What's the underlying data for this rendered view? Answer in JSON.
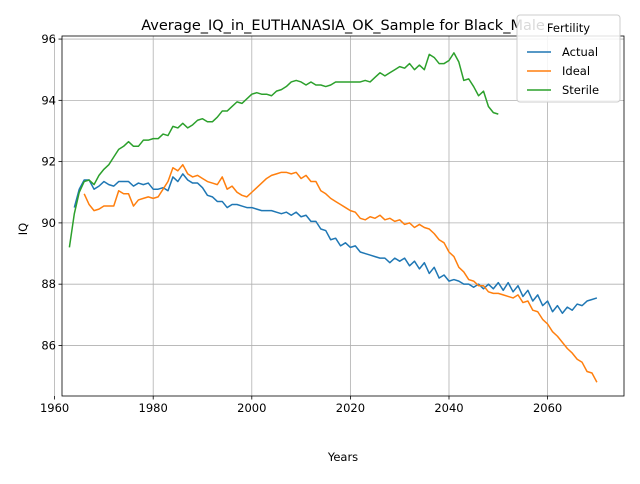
{
  "chart_data": {
    "type": "line",
    "title": "Average_IQ_in_EUTHANASIA_OK_Sample for Black_Male",
    "xlabel": "Years",
    "ylabel": "IQ",
    "xlim": [
      1961.5,
      2075.5
    ],
    "ylim": [
      84.35,
      96.1
    ],
    "xticks": [
      1960,
      1980,
      2000,
      2020,
      2040,
      2060
    ],
    "yticks": [
      86,
      88,
      90,
      92,
      94,
      96
    ],
    "grid": true,
    "legend": {
      "title": "Fertility",
      "placement": "top-right"
    },
    "series": [
      {
        "name": "Actual",
        "color": "#1f77b4",
        "points": [
          [
            1964,
            90.5
          ],
          [
            1965,
            91.1
          ],
          [
            1966,
            91.4
          ],
          [
            1967,
            91.4
          ],
          [
            1968,
            91.1
          ],
          [
            1969,
            91.2
          ],
          [
            1970,
            91.35
          ],
          [
            1971,
            91.25
          ],
          [
            1972,
            91.2
          ],
          [
            1973,
            91.35
          ],
          [
            1974,
            91.35
          ],
          [
            1975,
            91.35
          ],
          [
            1976,
            91.2
          ],
          [
            1977,
            91.3
          ],
          [
            1978,
            91.25
          ],
          [
            1979,
            91.3
          ],
          [
            1980,
            91.1
          ],
          [
            1981,
            91.1
          ],
          [
            1982,
            91.15
          ],
          [
            1983,
            91.05
          ],
          [
            1984,
            91.5
          ],
          [
            1985,
            91.35
          ],
          [
            1986,
            91.6
          ],
          [
            1987,
            91.4
          ],
          [
            1988,
            91.3
          ],
          [
            1989,
            91.3
          ],
          [
            1990,
            91.15
          ],
          [
            1991,
            90.9
          ],
          [
            1992,
            90.85
          ],
          [
            1993,
            90.7
          ],
          [
            1994,
            90.7
          ],
          [
            1995,
            90.5
          ],
          [
            1996,
            90.6
          ],
          [
            1997,
            90.6
          ],
          [
            1998,
            90.55
          ],
          [
            1999,
            90.5
          ],
          [
            2000,
            90.5
          ],
          [
            2001,
            90.45
          ],
          [
            2002,
            90.4
          ],
          [
            2003,
            90.4
          ],
          [
            2004,
            90.4
          ],
          [
            2005,
            90.35
          ],
          [
            2006,
            90.3
          ],
          [
            2007,
            90.35
          ],
          [
            2008,
            90.25
          ],
          [
            2009,
            90.35
          ],
          [
            2010,
            90.2
          ],
          [
            2011,
            90.25
          ],
          [
            2012,
            90.05
          ],
          [
            2013,
            90.05
          ],
          [
            2014,
            89.8
          ],
          [
            2015,
            89.75
          ],
          [
            2016,
            89.45
          ],
          [
            2017,
            89.5
          ],
          [
            2018,
            89.25
          ],
          [
            2019,
            89.35
          ],
          [
            2020,
            89.2
          ],
          [
            2021,
            89.25
          ],
          [
            2022,
            89.05
          ],
          [
            2023,
            89.0
          ],
          [
            2024,
            88.95
          ],
          [
            2025,
            88.9
          ],
          [
            2026,
            88.85
          ],
          [
            2027,
            88.85
          ],
          [
            2028,
            88.7
          ],
          [
            2029,
            88.85
          ],
          [
            2030,
            88.75
          ],
          [
            2031,
            88.85
          ],
          [
            2032,
            88.6
          ],
          [
            2033,
            88.75
          ],
          [
            2034,
            88.5
          ],
          [
            2035,
            88.7
          ],
          [
            2036,
            88.35
          ],
          [
            2037,
            88.55
          ],
          [
            2038,
            88.2
          ],
          [
            2039,
            88.3
          ],
          [
            2040,
            88.1
          ],
          [
            2041,
            88.15
          ],
          [
            2042,
            88.1
          ],
          [
            2043,
            88.0
          ],
          [
            2044,
            88.0
          ],
          [
            2045,
            87.9
          ],
          [
            2046,
            88.0
          ],
          [
            2047,
            87.85
          ],
          [
            2048,
            88.0
          ],
          [
            2049,
            87.85
          ],
          [
            2050,
            88.05
          ],
          [
            2051,
            87.8
          ],
          [
            2052,
            88.05
          ],
          [
            2053,
            87.75
          ],
          [
            2054,
            87.95
          ],
          [
            2055,
            87.6
          ],
          [
            2056,
            87.8
          ],
          [
            2057,
            87.45
          ],
          [
            2058,
            87.65
          ],
          [
            2059,
            87.3
          ],
          [
            2060,
            87.45
          ],
          [
            2061,
            87.1
          ],
          [
            2062,
            87.3
          ],
          [
            2063,
            87.05
          ],
          [
            2064,
            87.25
          ],
          [
            2065,
            87.15
          ],
          [
            2066,
            87.35
          ],
          [
            2067,
            87.3
          ],
          [
            2068,
            87.45
          ],
          [
            2069,
            87.5
          ],
          [
            2070,
            87.55
          ]
        ]
      },
      {
        "name": "Ideal",
        "color": "#ff7f0e",
        "points": [
          [
            1966,
            90.95
          ],
          [
            1967,
            90.6
          ],
          [
            1968,
            90.4
          ],
          [
            1969,
            90.45
          ],
          [
            1970,
            90.55
          ],
          [
            1971,
            90.55
          ],
          [
            1972,
            90.55
          ],
          [
            1973,
            91.05
          ],
          [
            1974,
            90.95
          ],
          [
            1975,
            90.95
          ],
          [
            1976,
            90.55
          ],
          [
            1977,
            90.75
          ],
          [
            1978,
            90.8
          ],
          [
            1979,
            90.85
          ],
          [
            1980,
            90.8
          ],
          [
            1981,
            90.85
          ],
          [
            1982,
            91.1
          ],
          [
            1983,
            91.35
          ],
          [
            1984,
            91.8
          ],
          [
            1985,
            91.7
          ],
          [
            1986,
            91.9
          ],
          [
            1987,
            91.6
          ],
          [
            1988,
            91.5
          ],
          [
            1989,
            91.55
          ],
          [
            1990,
            91.45
          ],
          [
            1991,
            91.35
          ],
          [
            1992,
            91.3
          ],
          [
            1993,
            91.25
          ],
          [
            1994,
            91.5
          ],
          [
            1995,
            91.1
          ],
          [
            1996,
            91.2
          ],
          [
            1997,
            91.0
          ],
          [
            1998,
            90.9
          ],
          [
            1999,
            90.85
          ],
          [
            2000,
            91.0
          ],
          [
            2001,
            91.15
          ],
          [
            2002,
            91.3
          ],
          [
            2003,
            91.45
          ],
          [
            2004,
            91.55
          ],
          [
            2005,
            91.6
          ],
          [
            2006,
            91.65
          ],
          [
            2007,
            91.65
          ],
          [
            2008,
            91.6
          ],
          [
            2009,
            91.65
          ],
          [
            2010,
            91.45
          ],
          [
            2011,
            91.55
          ],
          [
            2012,
            91.35
          ],
          [
            2013,
            91.35
          ],
          [
            2014,
            91.05
          ],
          [
            2015,
            90.95
          ],
          [
            2016,
            90.8
          ],
          [
            2017,
            90.7
          ],
          [
            2018,
            90.6
          ],
          [
            2019,
            90.5
          ],
          [
            2020,
            90.4
          ],
          [
            2021,
            90.35
          ],
          [
            2022,
            90.15
          ],
          [
            2023,
            90.1
          ],
          [
            2024,
            90.2
          ],
          [
            2025,
            90.15
          ],
          [
            2026,
            90.25
          ],
          [
            2027,
            90.1
          ],
          [
            2028,
            90.15
          ],
          [
            2029,
            90.05
          ],
          [
            2030,
            90.1
          ],
          [
            2031,
            89.95
          ],
          [
            2032,
            90.0
          ],
          [
            2033,
            89.85
          ],
          [
            2034,
            89.95
          ],
          [
            2035,
            89.85
          ],
          [
            2036,
            89.8
          ],
          [
            2037,
            89.65
          ],
          [
            2038,
            89.45
          ],
          [
            2039,
            89.35
          ],
          [
            2040,
            89.05
          ],
          [
            2041,
            88.9
          ],
          [
            2042,
            88.55
          ],
          [
            2043,
            88.4
          ],
          [
            2044,
            88.15
          ],
          [
            2045,
            88.1
          ],
          [
            2046,
            87.95
          ],
          [
            2047,
            87.95
          ],
          [
            2048,
            87.75
          ],
          [
            2049,
            87.7
          ],
          [
            2050,
            87.7
          ],
          [
            2051,
            87.65
          ],
          [
            2052,
            87.6
          ],
          [
            2053,
            87.55
          ],
          [
            2054,
            87.65
          ],
          [
            2055,
            87.4
          ],
          [
            2056,
            87.45
          ],
          [
            2057,
            87.15
          ],
          [
            2058,
            87.1
          ],
          [
            2059,
            86.85
          ],
          [
            2060,
            86.7
          ],
          [
            2061,
            86.45
          ],
          [
            2062,
            86.3
          ],
          [
            2063,
            86.1
          ],
          [
            2064,
            85.9
          ],
          [
            2065,
            85.75
          ],
          [
            2066,
            85.55
          ],
          [
            2067,
            85.45
          ],
          [
            2068,
            85.15
          ],
          [
            2069,
            85.1
          ],
          [
            2070,
            84.8
          ]
        ]
      },
      {
        "name": "Sterile",
        "color": "#2ca02c",
        "points": [
          [
            1963,
            89.2
          ],
          [
            1964,
            90.3
          ],
          [
            1965,
            91.0
          ],
          [
            1966,
            91.35
          ],
          [
            1967,
            91.4
          ],
          [
            1968,
            91.25
          ],
          [
            1969,
            91.55
          ],
          [
            1970,
            91.75
          ],
          [
            1971,
            91.9
          ],
          [
            1972,
            92.15
          ],
          [
            1973,
            92.4
          ],
          [
            1974,
            92.5
          ],
          [
            1975,
            92.65
          ],
          [
            1976,
            92.5
          ],
          [
            1977,
            92.5
          ],
          [
            1978,
            92.7
          ],
          [
            1979,
            92.7
          ],
          [
            1980,
            92.75
          ],
          [
            1981,
            92.75
          ],
          [
            1982,
            92.9
          ],
          [
            1983,
            92.85
          ],
          [
            1984,
            93.15
          ],
          [
            1985,
            93.1
          ],
          [
            1986,
            93.25
          ],
          [
            1987,
            93.1
          ],
          [
            1988,
            93.2
          ],
          [
            1989,
            93.35
          ],
          [
            1990,
            93.4
          ],
          [
            1991,
            93.3
          ],
          [
            1992,
            93.3
          ],
          [
            1993,
            93.45
          ],
          [
            1994,
            93.65
          ],
          [
            1995,
            93.65
          ],
          [
            1996,
            93.8
          ],
          [
            1997,
            93.95
          ],
          [
            1998,
            93.9
          ],
          [
            1999,
            94.05
          ],
          [
            2000,
            94.2
          ],
          [
            2001,
            94.25
          ],
          [
            2002,
            94.2
          ],
          [
            2003,
            94.2
          ],
          [
            2004,
            94.15
          ],
          [
            2005,
            94.3
          ],
          [
            2006,
            94.35
          ],
          [
            2007,
            94.45
          ],
          [
            2008,
            94.6
          ],
          [
            2009,
            94.65
          ],
          [
            2010,
            94.6
          ],
          [
            2011,
            94.5
          ],
          [
            2012,
            94.6
          ],
          [
            2013,
            94.5
          ],
          [
            2014,
            94.5
          ],
          [
            2015,
            94.45
          ],
          [
            2016,
            94.5
          ],
          [
            2017,
            94.6
          ],
          [
            2018,
            94.6
          ],
          [
            2019,
            94.6
          ],
          [
            2020,
            94.6
          ],
          [
            2021,
            94.6
          ],
          [
            2022,
            94.6
          ],
          [
            2023,
            94.65
          ],
          [
            2024,
            94.6
          ],
          [
            2025,
            94.75
          ],
          [
            2026,
            94.9
          ],
          [
            2027,
            94.8
          ],
          [
            2028,
            94.9
          ],
          [
            2029,
            95.0
          ],
          [
            2030,
            95.1
          ],
          [
            2031,
            95.05
          ],
          [
            2032,
            95.2
          ],
          [
            2033,
            95.0
          ],
          [
            2034,
            95.15
          ],
          [
            2035,
            95.0
          ],
          [
            2036,
            95.5
          ],
          [
            2037,
            95.4
          ],
          [
            2038,
            95.2
          ],
          [
            2039,
            95.2
          ],
          [
            2040,
            95.3
          ],
          [
            2041,
            95.55
          ],
          [
            2042,
            95.25
          ],
          [
            2043,
            94.65
          ],
          [
            2044,
            94.7
          ],
          [
            2045,
            94.45
          ],
          [
            2046,
            94.15
          ],
          [
            2047,
            94.3
          ],
          [
            2048,
            93.8
          ],
          [
            2049,
            93.6
          ],
          [
            2050,
            93.55
          ]
        ]
      }
    ]
  }
}
